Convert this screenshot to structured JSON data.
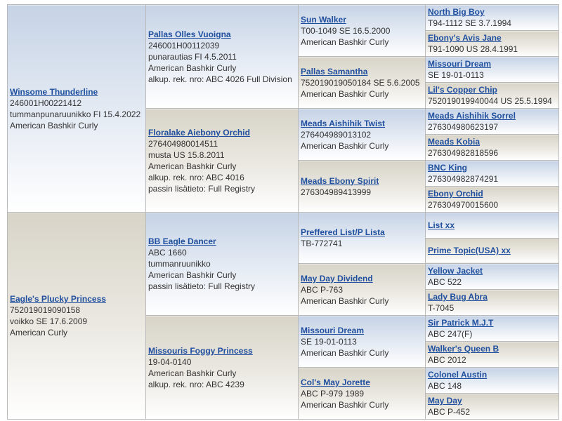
{
  "colors": {
    "link": "#1f4f9e",
    "sire_bg": "#c6d3e6",
    "dam_bg": "#d8d4c8",
    "border": "#b9b9b9"
  },
  "columns": [
    [
      {
        "name": "Winsome Thunderline",
        "lines": [
          "246001H00221412",
          "tummanpunaruunikko FI 15.4.2022",
          "American Bashkir Curly"
        ]
      },
      {
        "name": "Eagle's Plucky Princess",
        "lines": [
          "752019019090158",
          "voikko SE 17.6.2009",
          "American Curly"
        ]
      }
    ],
    [
      {
        "name": "Pallas Olles Vuoigna",
        "lines": [
          "246001H00112039",
          "punarautias FI 4.5.2011",
          "American Bashkir Curly",
          "alkup. rek. nro: ABC 4026 Full Division"
        ]
      },
      {
        "name": "Floralake Aiebony Orchid",
        "lines": [
          "276404980014511",
          "musta US 15.8.2011",
          "American Bashkir Curly",
          "alkup. rek. nro: ABC 4016",
          "passin lisätieto: Full Registry"
        ]
      },
      {
        "name": "BB Eagle Dancer",
        "lines": [
          "ABC 1660",
          "tummanruunikko",
          "American Bashkir Curly",
          "passin lisätieto: Full Registry"
        ]
      },
      {
        "name": "Missouris Foggy Princess",
        "lines": [
          "19-04-0140",
          "American Bashkir Curly",
          "alkup. rek. nro: ABC 4239"
        ]
      }
    ],
    [
      {
        "name": "Sun Walker",
        "lines": [
          "T00-1049 SE 16.5.2000",
          "American Bashkir Curly"
        ]
      },
      {
        "name": "Pallas Samantha",
        "lines": [
          "752019019050184 SE 5.6.2005",
          "American Bashkir Curly"
        ]
      },
      {
        "name": "Meads Aishihik Twist",
        "lines": [
          "276404989013102",
          "American Bashkir Curly"
        ]
      },
      {
        "name": "Meads Ebony Spirit",
        "lines": [
          "276304989413999"
        ]
      },
      {
        "name": "Preffered List/P Lista",
        "lines": [
          "TB-772741"
        ]
      },
      {
        "name": "May Day Dividend",
        "lines": [
          "ABC P-763",
          "American Bashkir Curly"
        ]
      },
      {
        "name": "Missouri Dream",
        "lines": [
          "SE 19-01-0113",
          "American Bashkir Curly"
        ]
      },
      {
        "name": "Col's May Jorette",
        "lines": [
          "ABC P-979 1989",
          "American Bashkir Curly"
        ]
      }
    ],
    [
      {
        "name": "North Big Boy",
        "lines": [
          "T94-1112 SE 3.7.1994"
        ]
      },
      {
        "name": "Ebony's Avis Jane",
        "lines": [
          "T91-1090 US 28.4.1991"
        ]
      },
      {
        "name": "Missouri Dream",
        "lines": [
          "SE 19-01-0113"
        ]
      },
      {
        "name": "Lil's Copper Chip",
        "lines": [
          "752019019940044 US 25.5.1994"
        ]
      },
      {
        "name": "Meads Aishihik Sorrel",
        "lines": [
          "276304980623197"
        ]
      },
      {
        "name": "Meads Kobia",
        "lines": [
          "276304982818596"
        ]
      },
      {
        "name": "BNC King",
        "lines": [
          "276304982874291"
        ]
      },
      {
        "name": "Ebony Orchid",
        "lines": [
          "276304970015600"
        ]
      },
      {
        "name": "List xx",
        "lines": []
      },
      {
        "name": "Prime Topic(USA) xx",
        "lines": []
      },
      {
        "name": "Yellow Jacket",
        "lines": [
          "ABC 522"
        ]
      },
      {
        "name": "Lady Bug Abra",
        "lines": [
          "T-7045"
        ]
      },
      {
        "name": "Sir Patrick M.J.T",
        "lines": [
          "ABC 247(F)"
        ]
      },
      {
        "name": "Walker's Queen B",
        "lines": [
          "ABC 2012"
        ]
      },
      {
        "name": "Colonel Austin",
        "lines": [
          "ABC 148"
        ]
      },
      {
        "name": "May Day",
        "lines": [
          "ABC P-452"
        ]
      }
    ]
  ]
}
